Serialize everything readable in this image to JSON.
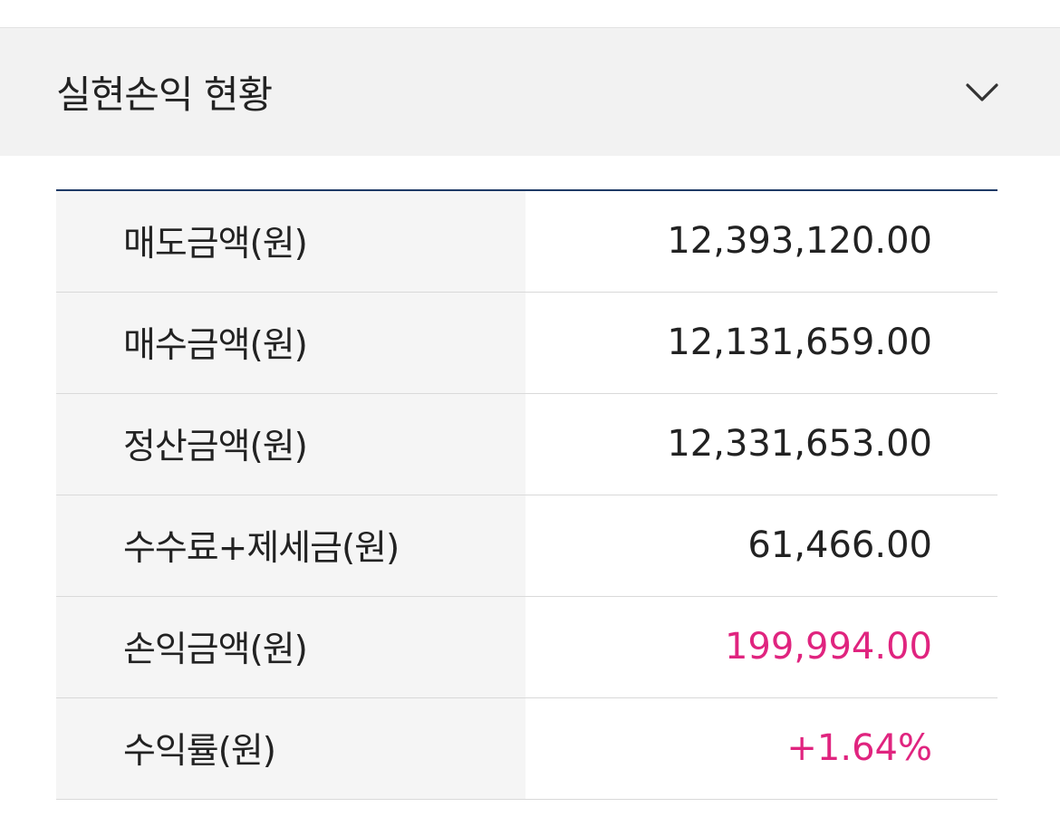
{
  "section": {
    "title": "실현손익 현황",
    "toggle_icon": "chevron-down-icon"
  },
  "rows": [
    {
      "label": "매도금액(원)",
      "value": "12,393,120.00"
    },
    {
      "label": "매수금액(원)",
      "value": "12,131,659.00"
    },
    {
      "label": "정산금액(원)",
      "value": "12,331,653.00"
    },
    {
      "label": "수수료+제세금(원)",
      "value": "61,466.00"
    },
    {
      "label": "손익금액(원)",
      "value": "199,994.00"
    },
    {
      "label": "수익률(원)",
      "value": "+1.64%"
    }
  ],
  "colors": {
    "positive": "#e0247f",
    "table_top_border": "#1e3a66",
    "header_bg": "#f2f2f2"
  }
}
